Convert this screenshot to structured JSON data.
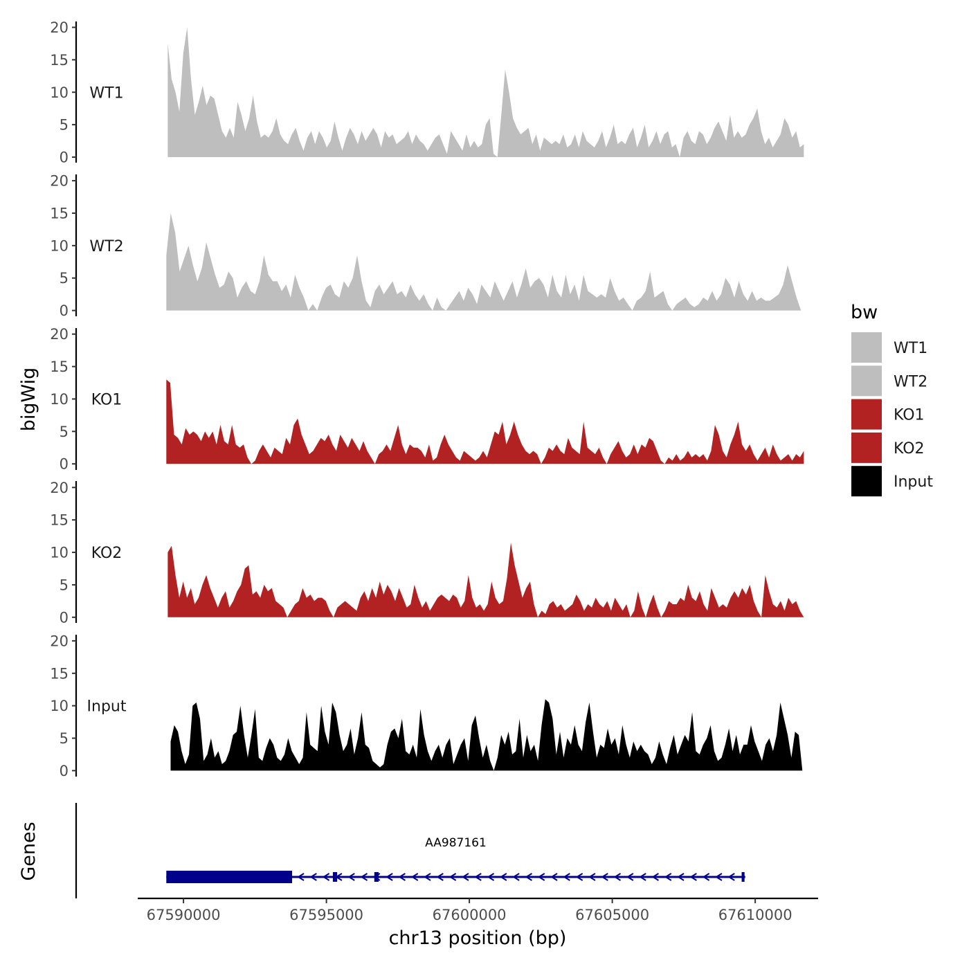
{
  "chart_data": {
    "type": "area",
    "chromosome": "chr13",
    "xlabel": "chr13 position (bp)",
    "ylabel": "bigWig",
    "genes_panel_label": "Genes",
    "xlim": [
      67588400,
      67612200
    ],
    "ylim": [
      0,
      20
    ],
    "y_ticks": [
      0,
      5,
      10,
      15,
      20
    ],
    "x_ticks": [
      67590000,
      67595000,
      67600000,
      67605000,
      67610000
    ],
    "x_tick_labels": [
      "67590000",
      "67595000",
      "67600000",
      "67605000",
      "67610000"
    ],
    "legend": {
      "title": "bw",
      "position": "right",
      "entries": [
        {
          "label": "WT1",
          "color": "#bebebe"
        },
        {
          "label": "WT2",
          "color": "#bebebe"
        },
        {
          "label": "KO1",
          "color": "#b22222"
        },
        {
          "label": "KO2",
          "color": "#b22222"
        },
        {
          "label": "Input",
          "color": "#000000"
        }
      ]
    },
    "series": [
      {
        "name": "WT1",
        "color": "#bebebe",
        "x_start": 67589450,
        "x_end": 67611700,
        "values": [
          17.5,
          12,
          10,
          7,
          16,
          20,
          12,
          6.5,
          8.5,
          11,
          8,
          9.5,
          9,
          6.5,
          4,
          3,
          4.5,
          3,
          8.5,
          6.5,
          4,
          6,
          9.5,
          5.5,
          3,
          3.5,
          3,
          4,
          6,
          3.5,
          2.5,
          2,
          3.5,
          4.5,
          2.5,
          1,
          3,
          4,
          2,
          4,
          3,
          1.5,
          2.5,
          5.5,
          3,
          1,
          3,
          4.5,
          3.5,
          2,
          4,
          2.5,
          3.5,
          4.5,
          3.5,
          1.5,
          4,
          3,
          3.5,
          2,
          2.5,
          3,
          4,
          2,
          3.5,
          2.5,
          2,
          1,
          2,
          3,
          3.5,
          2,
          0.5,
          4,
          3,
          2,
          1,
          3.5,
          1.5,
          2.5,
          1.5,
          2,
          5,
          6,
          0.5,
          0,
          6.5,
          13.5,
          10,
          6,
          4.5,
          3.5,
          4,
          4.5,
          2,
          3.5,
          1,
          3,
          2.5,
          2,
          2.5,
          2,
          3.5,
          1.5,
          2,
          3.5,
          1.5,
          4,
          2.5,
          2,
          1.5,
          2.5,
          4,
          1.5,
          3,
          5,
          2,
          2.5,
          2,
          3.5,
          4.5,
          1.5,
          3,
          5,
          1.5,
          2.5,
          4,
          2,
          3.5,
          4,
          1.5,
          2,
          0,
          3,
          4,
          2.5,
          2,
          4,
          3.5,
          2,
          3,
          4.5,
          5.5,
          4,
          2.5,
          6.5,
          3,
          4,
          3,
          3.5,
          5,
          6,
          7.5,
          4,
          2,
          3,
          1.5,
          2.5,
          3.5,
          6,
          5,
          3,
          4,
          1.5,
          2
        ],
        "smooth": 0
      },
      {
        "name": "WT2",
        "color": "#bebebe",
        "x_start": 67589400,
        "x_end": 67611600,
        "values": [
          8.5,
          15,
          12,
          6,
          8,
          10,
          7,
          4.5,
          6.5,
          10.5,
          8,
          5.5,
          3.5,
          4,
          6,
          5,
          2,
          3.5,
          4.5,
          3,
          2.5,
          4.5,
          8.5,
          5.5,
          4.5,
          4.5,
          3,
          4,
          2,
          5.5,
          3.5,
          2,
          0,
          1,
          0,
          2,
          3.5,
          4,
          2.5,
          2,
          4.5,
          3.5,
          5,
          8.5,
          4.5,
          1.5,
          0.5,
          3,
          4,
          2.5,
          3.5,
          4.5,
          2.5,
          3,
          2,
          4,
          2.5,
          1.5,
          2.5,
          1,
          0,
          2,
          0.5,
          0,
          1,
          2,
          3,
          1.5,
          3.5,
          2.5,
          1,
          4,
          3,
          2,
          4.5,
          3,
          1.5,
          3,
          4.5,
          2,
          4,
          6.5,
          3.5,
          4.5,
          5,
          4,
          2,
          5.5,
          3,
          2,
          5.5,
          2.5,
          4,
          1.5,
          5.5,
          3,
          2.5,
          2,
          2.5,
          2,
          5,
          3,
          1.5,
          2,
          1,
          0,
          1.5,
          2,
          3,
          6,
          2,
          2.5,
          3,
          1,
          0,
          1,
          1.5,
          2,
          1,
          0.5,
          1,
          2,
          1.5,
          3,
          1.5,
          2.5,
          5,
          4,
          2,
          4.5,
          2.5,
          1.5,
          3,
          1.5,
          2,
          1.5,
          1.5,
          2,
          2.5,
          4,
          7,
          4.5,
          2,
          0
        ],
        "smooth": 0
      },
      {
        "name": "KO1",
        "color": "#b22222",
        "x_start": 67589400,
        "x_end": 67611700,
        "values": [
          13,
          12.5,
          4.5,
          4,
          3,
          5.5,
          4.5,
          5,
          4.5,
          3.5,
          5,
          4,
          5,
          3,
          6,
          3.5,
          3,
          6,
          3,
          2.5,
          3,
          1,
          0,
          0.5,
          2,
          3,
          2,
          1,
          2.5,
          2,
          1.5,
          4,
          3,
          6,
          7,
          4.5,
          3,
          1.5,
          2,
          3,
          4,
          3.5,
          4.5,
          3,
          2,
          4.5,
          3.5,
          2.5,
          4,
          3,
          2,
          3.5,
          2,
          1,
          0,
          1.5,
          2,
          3,
          2,
          4,
          6,
          3,
          1.5,
          3,
          2.5,
          2.5,
          2,
          1,
          3,
          0.5,
          1,
          3,
          4.5,
          3,
          2,
          1,
          0.5,
          2,
          1.5,
          1,
          0.5,
          1,
          2,
          1,
          3,
          5,
          4.5,
          6.5,
          3,
          4.5,
          6.5,
          4.5,
          3,
          2,
          1.5,
          2,
          1.5,
          0,
          1,
          2.5,
          2,
          3,
          2,
          1.5,
          4,
          2.5,
          2,
          1.5,
          6.5,
          2.5,
          2,
          1.5,
          2.5,
          1,
          0,
          1.5,
          2.5,
          3.5,
          2,
          1,
          1.5,
          3,
          1.5,
          3,
          2.5,
          4,
          3.5,
          2,
          0.5,
          0,
          1,
          0.5,
          1.5,
          0.5,
          1,
          2,
          1,
          1.5,
          1,
          1.5,
          0.5,
          2,
          6,
          4.5,
          2,
          1,
          3,
          4.5,
          6.5,
          3,
          2,
          3,
          1.5,
          0.5,
          1.5,
          2.5,
          1,
          3,
          1.5,
          0.5,
          1,
          1.5,
          0.5,
          1.5,
          1,
          2
        ],
        "smooth": 0
      },
      {
        "name": "KO2",
        "color": "#b22222",
        "x_start": 67589450,
        "x_end": 67611700,
        "values": [
          10,
          11,
          6.5,
          3,
          5.5,
          3,
          4.5,
          2,
          3,
          5,
          6.5,
          4.5,
          3,
          1.5,
          3,
          4,
          1.5,
          2.5,
          4,
          5,
          7.5,
          8,
          3.5,
          4,
          3,
          5,
          4,
          4.5,
          2.5,
          2,
          1.5,
          0,
          1,
          2,
          2.5,
          4.5,
          3,
          3.5,
          2.5,
          3,
          3,
          2.5,
          1,
          0,
          1.5,
          2,
          2.5,
          2,
          1.5,
          1,
          3,
          4,
          2.5,
          4.5,
          3,
          5.5,
          3.5,
          5,
          4,
          2.5,
          4.5,
          3,
          1.5,
          2,
          5,
          3,
          1.5,
          2.5,
          1,
          2,
          3,
          3.5,
          3,
          2.5,
          3.5,
          3,
          1.5,
          2.5,
          6.5,
          3,
          1.5,
          2,
          1,
          2,
          5.5,
          3,
          2,
          2.5,
          6,
          11.5,
          8,
          5.5,
          3,
          4.5,
          5.5,
          2,
          0,
          1,
          0.5,
          2,
          2.5,
          1.5,
          2,
          1,
          1.5,
          2,
          3.5,
          2.5,
          1,
          2,
          1.5,
          3,
          2,
          1.5,
          2.5,
          1,
          3,
          2,
          1,
          2,
          0,
          1,
          4,
          1.5,
          0,
          2,
          3.5,
          1.5,
          0,
          1,
          2.5,
          2,
          2,
          3,
          2.5,
          5,
          3,
          2.5,
          4,
          2,
          1,
          4.5,
          3,
          1.5,
          2,
          1.5,
          3,
          4,
          3,
          4.5,
          3.5,
          5,
          2.5,
          1,
          0,
          6.5,
          4,
          2,
          1.5,
          2.5,
          1,
          3,
          2,
          2.5,
          1,
          0
        ],
        "smooth": 0
      },
      {
        "name": "Input",
        "color": "#000000",
        "x_start": 67589550,
        "x_end": 67611650,
        "values": [
          4.5,
          7,
          6,
          3,
          1,
          2.5,
          10,
          10.5,
          8,
          1.5,
          2.5,
          5,
          2,
          3,
          1,
          1.5,
          3,
          5.5,
          6,
          10,
          5.5,
          2,
          5.5,
          9.5,
          2,
          1.5,
          3.5,
          5,
          4,
          2,
          1.5,
          2.5,
          5,
          3,
          2,
          1,
          2,
          9,
          4,
          3.5,
          3,
          10,
          6,
          4,
          10.5,
          9,
          5.5,
          3,
          4,
          6.5,
          2.5,
          5,
          9,
          4,
          3.5,
          1.5,
          1,
          0.5,
          1,
          4,
          6,
          6.5,
          5,
          8,
          3,
          2.5,
          4,
          2,
          9.5,
          5.5,
          3,
          1.5,
          3,
          4,
          2,
          4,
          5,
          1,
          2.5,
          4,
          5,
          1.5,
          7,
          8.5,
          5,
          2,
          4,
          1.5,
          0,
          2,
          5.5,
          4,
          6,
          2.5,
          3,
          8,
          2,
          5.5,
          3,
          4,
          1.5,
          7,
          11,
          10.5,
          8,
          2.5,
          6,
          2,
          5,
          4,
          7,
          4,
          3,
          7.5,
          10.5,
          6,
          2,
          4,
          3.5,
          6.5,
          4,
          5,
          2.5,
          7,
          4,
          2,
          4.5,
          3,
          4,
          3,
          2.5,
          1,
          2,
          4.5,
          2.5,
          1,
          3.5,
          5.5,
          2.5,
          4,
          5.5,
          4.5,
          9,
          3,
          2.5,
          4,
          5,
          7,
          3,
          1.5,
          2,
          4,
          6.5,
          3,
          5.5,
          2.5,
          4,
          4,
          7,
          4.5,
          3,
          1.5,
          4,
          5,
          3,
          5.5,
          10.5,
          8,
          5.5,
          2,
          6,
          5.5,
          0
        ],
        "smooth": 0
      }
    ],
    "gene_track": {
      "gene": "AA987161",
      "color": "#00008b",
      "strand": "-",
      "start": 67589400,
      "end": 67609650,
      "thick_exon": [
        67589400,
        67593800
      ],
      "exons": [
        [
          67589400,
          67593800
        ],
        [
          67595250,
          67595400
        ],
        [
          67596700,
          67596850
        ],
        [
          67609550,
          67609650
        ]
      ]
    }
  }
}
